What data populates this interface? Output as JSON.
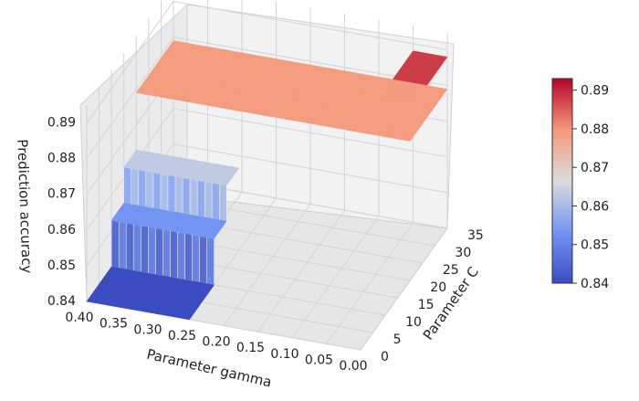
{
  "chart_data": {
    "type": "surface",
    "title": "",
    "xlabel": "Parameter gamma",
    "ylabel": "Parameter C",
    "zlabel": "Prediction accuracy",
    "x_ticks": [
      "0.40",
      "0.35",
      "0.30",
      "0.25",
      "0.20",
      "0.15",
      "0.10",
      "0.05",
      "0.00"
    ],
    "y_ticks": [
      "0",
      "5",
      "10",
      "15",
      "20",
      "25",
      "30",
      "35"
    ],
    "z_ticks": [
      "0.84",
      "0.85",
      "0.86",
      "0.87",
      "0.88",
      "0.89"
    ],
    "xlim": [
      0.0,
      0.4
    ],
    "ylim": [
      0,
      35
    ],
    "zlim": [
      0.84,
      0.895
    ],
    "colormap": "coolwarm",
    "colorbar": {
      "range": [
        0.84,
        0.893
      ],
      "ticks": [
        "0.84",
        "0.85",
        "0.86",
        "0.87",
        "0.88",
        "0.89"
      ]
    },
    "surface_regions": [
      {
        "gamma_range": [
          0.25,
          0.4
        ],
        "C_range": [
          0,
          10
        ],
        "accuracy": 0.84
      },
      {
        "gamma_range": [
          0.25,
          0.4
        ],
        "C_range": [
          10,
          15
        ],
        "accuracy": 0.853
      },
      {
        "gamma_range": [
          0.25,
          0.4
        ],
        "C_range": [
          15,
          20
        ],
        "accuracy": 0.863
      },
      {
        "gamma_range": [
          0.0,
          0.4
        ],
        "C_range": [
          20,
          35
        ],
        "accuracy": 0.879
      },
      {
        "gamma_range": [
          0.0,
          0.05
        ],
        "C_range": [
          22,
          35
        ],
        "accuracy": 0.888
      }
    ]
  }
}
